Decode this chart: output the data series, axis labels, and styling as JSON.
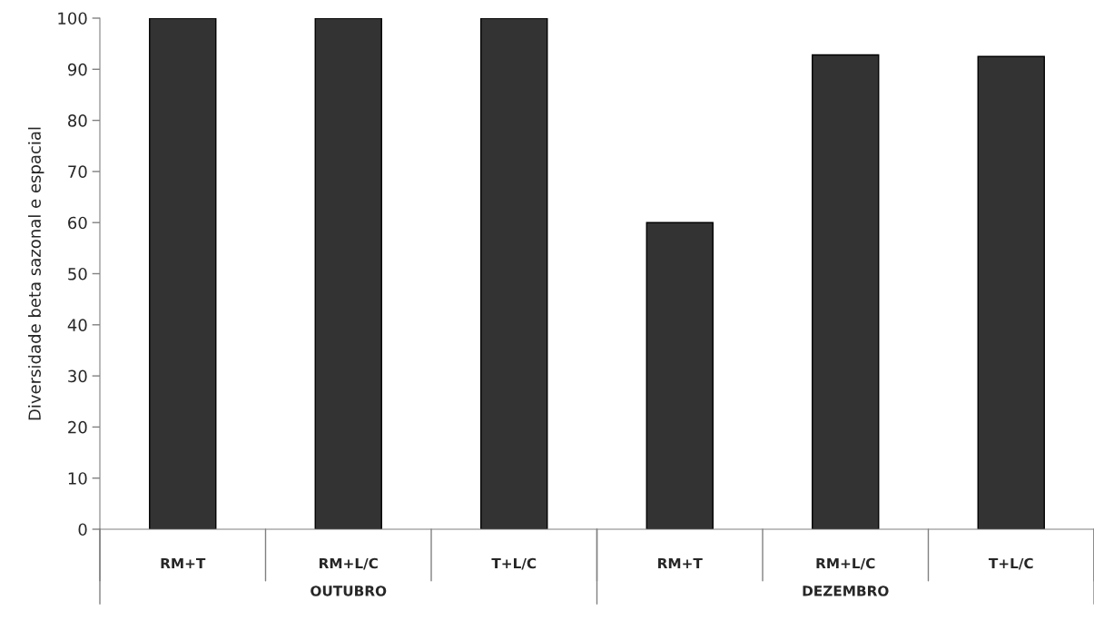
{
  "chart_data": {
    "type": "bar",
    "ylabel": "Diversidade beta sazonal e espacial",
    "categories": [
      "RM+T",
      "RM+L/C",
      "T+L/C",
      "RM+T",
      "RM+L/C",
      "T+L/C"
    ],
    "values": [
      100,
      100,
      100,
      60,
      92.8,
      92.5
    ],
    "color": "#333333",
    "ylim": [
      0,
      100
    ],
    "yticks": [
      0,
      10,
      20,
      30,
      40,
      50,
      60,
      70,
      80,
      90,
      100
    ],
    "grid": false,
    "legend": false,
    "annotations": [
      "OUTUBRO",
      "DEZEMBRO"
    ]
  }
}
